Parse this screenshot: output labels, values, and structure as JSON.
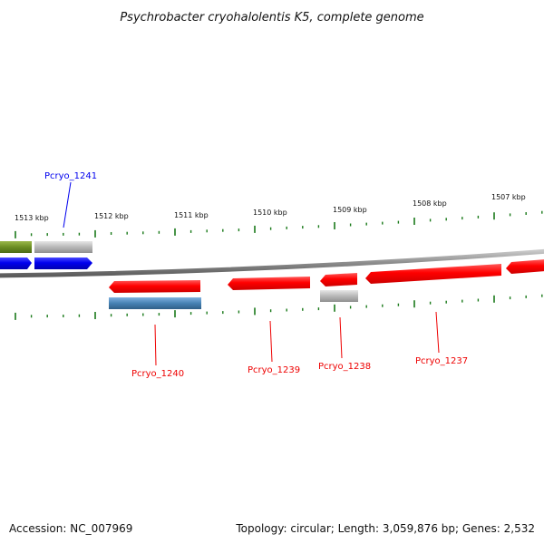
{
  "title": "Psychrobacter cryohalolentis K5, complete genome",
  "footer": {
    "accession": "Accession: NC_007969",
    "summary": "Topology: circular; Length: 3,059,876 bp; Genes: 2,532"
  },
  "scale_labels": [
    "1513 kbp",
    "1512 kbp",
    "1511 kbp",
    "1510 kbp",
    "1509 kbp",
    "1508 kbp",
    "1507 kbp"
  ],
  "gene_labels": {
    "top": [
      "Pcryo_1241"
    ],
    "bottom": [
      "Pcryo_1240",
      "Pcryo_1239",
      "Pcryo_1238",
      "Pcryo_1237"
    ]
  },
  "colors": {
    "forward_strand": "#0000ee",
    "reverse_strand": "#ee0000",
    "backbone": "#888888",
    "ticks": "#1a7a1a",
    "rna_feature": "#6b8e23",
    "pseudo_feature": "#b8b8b8",
    "steel_feature": "#4682b4"
  }
}
